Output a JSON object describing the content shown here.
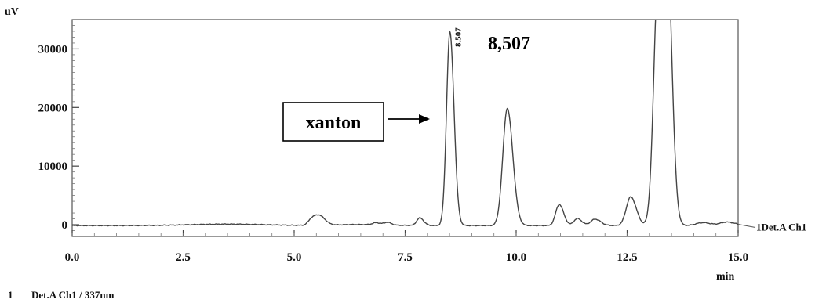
{
  "chart_data": {
    "type": "line",
    "y_unit": "uV",
    "x_unit": "min",
    "xlim": [
      0,
      15
    ],
    "ylim": [
      -2000,
      35000
    ],
    "x_ticks": [
      "0.0",
      "2.5",
      "5.0",
      "7.5",
      "10.0",
      "12.5",
      "15.0"
    ],
    "x_tick_values": [
      0,
      2.5,
      5,
      7.5,
      10,
      12.5,
      15
    ],
    "y_ticks": [
      "0",
      "10000",
      "20000",
      "30000"
    ],
    "y_tick_values": [
      0,
      10000,
      20000,
      30000
    ],
    "grid": false,
    "series": [
      {
        "name": "1Det.A Ch1",
        "color": "#444444",
        "baseline": -150,
        "peaks": [
          {
            "x": 5.4,
            "height": 1100,
            "width": 0.08
          },
          {
            "x": 5.58,
            "height": 1500,
            "width": 0.1
          },
          {
            "x": 6.85,
            "height": 350,
            "width": 0.08
          },
          {
            "x": 7.1,
            "height": 450,
            "width": 0.07
          },
          {
            "x": 7.83,
            "height": 1300,
            "width": 0.07
          },
          {
            "x": 8.507,
            "height": 33000,
            "width": 0.075
          },
          {
            "x": 9.8,
            "height": 20000,
            "width": 0.1
          },
          {
            "x": 10.97,
            "height": 3600,
            "width": 0.08
          },
          {
            "x": 11.38,
            "height": 1200,
            "width": 0.08
          },
          {
            "x": 11.78,
            "height": 1100,
            "width": 0.1
          },
          {
            "x": 12.58,
            "height": 4900,
            "width": 0.1
          },
          {
            "x": 13.2,
            "height": 42000,
            "width": 0.1
          },
          {
            "x": 13.4,
            "height": 42000,
            "width": 0.09
          },
          {
            "x": 14.2,
            "height": 500,
            "width": 0.15
          },
          {
            "x": 14.75,
            "height": 600,
            "width": 0.15
          }
        ]
      }
    ],
    "annotations": {
      "peak_label_small": "8.507",
      "peak_label_large": "8,507",
      "box_label": "xanton"
    },
    "footer": {
      "index": "1",
      "text": "Det.A Ch1 / 337nm"
    }
  }
}
